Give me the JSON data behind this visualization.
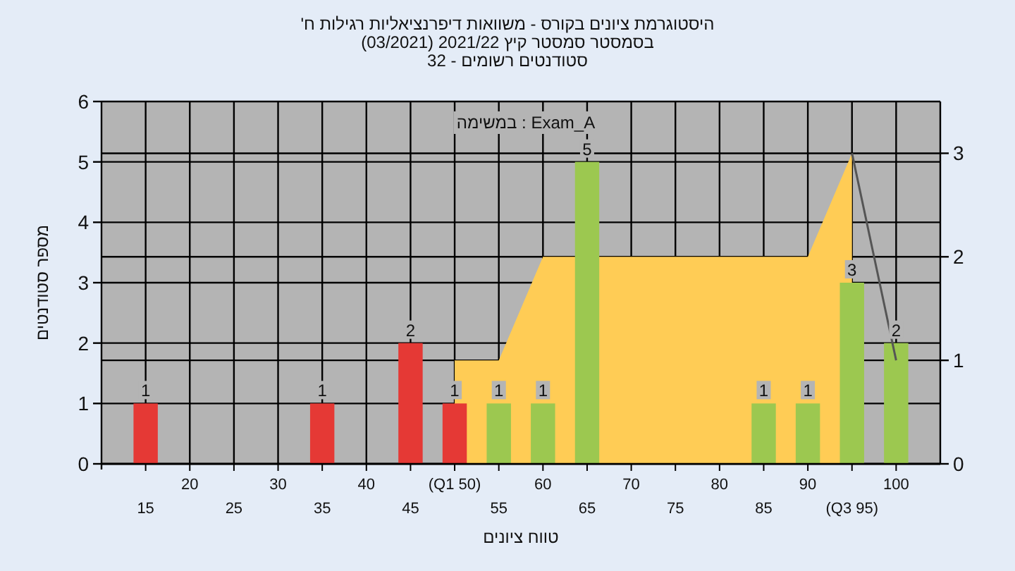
{
  "chart_data": {
    "type": "bar",
    "title": "היסטוגרמת ציונים בקורס - משוואות דיפרנציאליות רגילות ח'",
    "subtitle": "בסמסטר סמסטר קיץ 2021/22 (03/2021)",
    "xlabel": "טווח ציונים",
    "ylabel": "מספר סטודנטים",
    "annotations": [
      "סטודנטים רשומים - 32",
      "Exam_A : במשימה"
    ],
    "categories": [
      "15",
      "20",
      "25",
      "30",
      "35",
      "40",
      "45",
      "(Q1 50)",
      "55",
      "60",
      "65",
      "70",
      "75",
      "80",
      "85",
      "90",
      "(Q3 95)",
      "100"
    ],
    "values": [
      1,
      0,
      0,
      0,
      1,
      0,
      2,
      1,
      1,
      1,
      5,
      0,
      0,
      0,
      1,
      1,
      3,
      2
    ],
    "colors": [
      "#e53935",
      "#e53935",
      "#e53935",
      "#e53935",
      "#e53935",
      "#e53935",
      "#e53935",
      "#e53935",
      "#9cc850",
      "#9cc850",
      "#9cc850",
      "#9cc850",
      "#9cc850",
      "#9cc850",
      "#9cc850",
      "#9cc850",
      "#9cc850",
      "#9cc850"
    ],
    "value_labels": [
      "1",
      null,
      null,
      null,
      "1",
      null,
      "2",
      "1",
      "1",
      "1",
      "5",
      null,
      null,
      null,
      "1",
      "1",
      "3",
      "2"
    ],
    "series": [
      {
        "type": "area",
        "axis": "y2",
        "color": "#ffcc55",
        "values": [
          null,
          null,
          null,
          null,
          null,
          null,
          null,
          1,
          1,
          2,
          null,
          2,
          2,
          2,
          2,
          2,
          3,
          null
        ]
      },
      {
        "type": "line",
        "axis": "y2",
        "color": "#555555",
        "values": [
          null,
          null,
          null,
          null,
          null,
          null,
          null,
          null,
          null,
          null,
          null,
          null,
          null,
          null,
          null,
          null,
          3,
          1
        ]
      }
    ],
    "ylim": [
      0,
      6
    ],
    "yticks": [
      0,
      1,
      2,
      3,
      4,
      5,
      6
    ],
    "y2lim": [
      0,
      3.5
    ],
    "y2ticks": [
      0,
      1,
      2,
      3
    ],
    "grid": true
  }
}
